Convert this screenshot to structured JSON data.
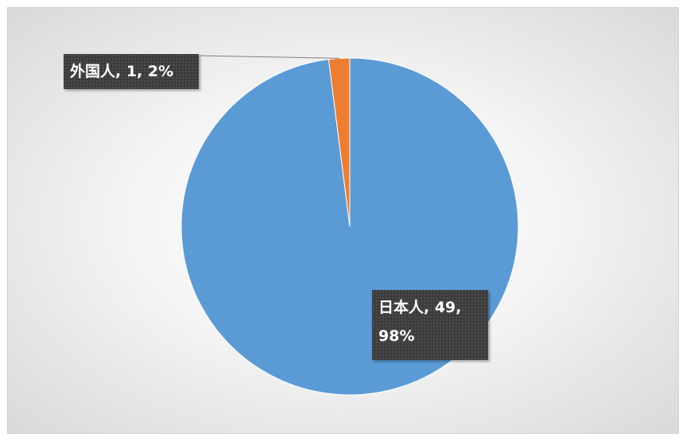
{
  "chart_data": {
    "type": "pie",
    "values": [
      49,
      1
    ],
    "value_labels": [
      "日本人, 49, 98%",
      "外国人, 1, 2%"
    ],
    "colors": [
      "#5b9bd5",
      "#ed7d31"
    ]
  }
}
